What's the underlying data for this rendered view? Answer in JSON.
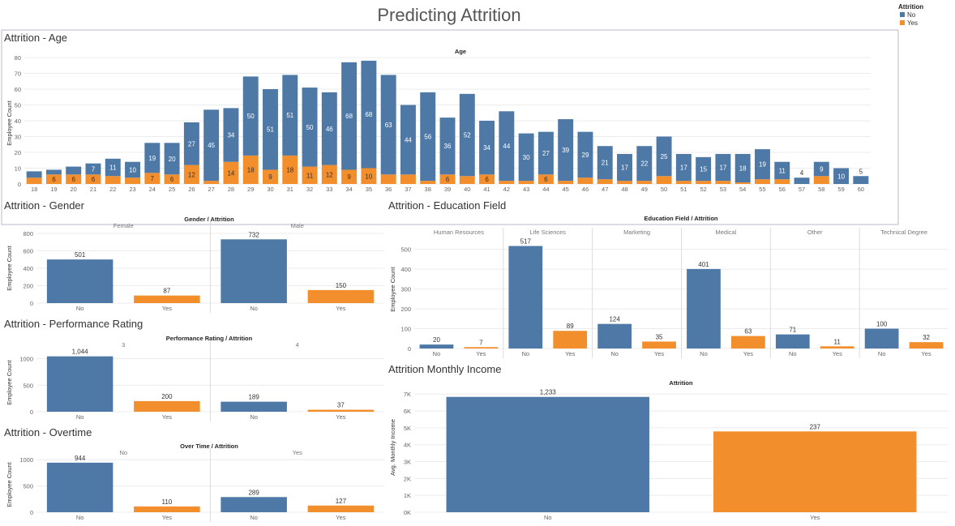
{
  "dashboard": {
    "title": "Predicting Attrition"
  },
  "legend": {
    "title": "Attrition",
    "items": [
      {
        "label": "No",
        "color": "#4e79a7"
      },
      {
        "label": "Yes",
        "color": "#f28e2b"
      }
    ]
  },
  "colors": {
    "no": "#4e79a7",
    "yes": "#f28e2b"
  },
  "chart_data": [
    {
      "id": "age",
      "type": "bar",
      "stacked": true,
      "title": "Attrition - Age",
      "header": "Age",
      "ylabel": "Employee Count",
      "ylim": [
        0,
        80
      ],
      "yticks": [
        0,
        10,
        20,
        30,
        40,
        50,
        60,
        70,
        80
      ],
      "categories": [
        "18",
        "19",
        "20",
        "21",
        "22",
        "23",
        "24",
        "25",
        "26",
        "27",
        "28",
        "29",
        "30",
        "31",
        "32",
        "33",
        "34",
        "35",
        "36",
        "37",
        "38",
        "39",
        "40",
        "41",
        "42",
        "43",
        "44",
        "45",
        "46",
        "47",
        "48",
        "49",
        "50",
        "51",
        "52",
        "53",
        "54",
        "55",
        "56",
        "57",
        "58",
        "59",
        "60"
      ],
      "series": [
        {
          "name": "Yes",
          "values": [
            4,
            6,
            6,
            6,
            5,
            4,
            7,
            6,
            12,
            2,
            14,
            18,
            9,
            18,
            11,
            12,
            9,
            10,
            6,
            6,
            2,
            6,
            5,
            6,
            2,
            2,
            6,
            2,
            4,
            3,
            2,
            2,
            5,
            2,
            2,
            2,
            1,
            3,
            3,
            0,
            5,
            0,
            0
          ],
          "labels": [
            "",
            "6",
            "6",
            "6",
            "",
            "",
            "7",
            "6",
            "12",
            "",
            "14",
            "18",
            "9",
            "18",
            "11",
            "12",
            "9",
            "10",
            "",
            "",
            "",
            "6",
            "",
            "6",
            "",
            "",
            "6",
            "",
            "",
            "",
            "",
            "",
            "",
            "",
            "",
            "",
            "",
            "",
            "",
            "",
            "",
            "",
            ""
          ]
        },
        {
          "name": "No",
          "values": [
            4,
            3,
            5,
            7,
            11,
            10,
            19,
            20,
            27,
            45,
            34,
            50,
            51,
            51,
            50,
            46,
            68,
            68,
            63,
            44,
            56,
            36,
            52,
            34,
            44,
            30,
            27,
            39,
            29,
            21,
            17,
            22,
            25,
            17,
            15,
            17,
            18,
            19,
            11,
            4,
            9,
            10,
            5
          ],
          "labels": [
            "",
            "",
            "",
            "7",
            "11",
            "10",
            "19",
            "20",
            "27",
            "45",
            "34",
            "50",
            "51",
            "51",
            "50",
            "46",
            "68",
            "68",
            "63",
            "44",
            "56",
            "36",
            "52",
            "34",
            "44",
            "30",
            "27",
            "39",
            "29",
            "21",
            "17",
            "22",
            "25",
            "17",
            "15",
            "17",
            "18",
            "19",
            "11",
            "4",
            "9",
            "10",
            "5"
          ]
        }
      ]
    },
    {
      "id": "gender",
      "type": "bar",
      "title": "Attrition - Gender",
      "header": "Gender / Attrition",
      "ylabel": "Employee Count",
      "ylim": [
        0,
        800
      ],
      "yticks": [
        0,
        200,
        400,
        600,
        800
      ],
      "tick_labels": [
        "0",
        "200",
        "400",
        "600",
        "800"
      ],
      "facets": [
        {
          "name": "Female",
          "categories": [
            "No",
            "Yes"
          ],
          "values": [
            501,
            87
          ],
          "labels": [
            "501",
            "87"
          ]
        },
        {
          "name": "Male",
          "categories": [
            "No",
            "Yes"
          ],
          "values": [
            732,
            150
          ],
          "labels": [
            "732",
            "150"
          ]
        }
      ]
    },
    {
      "id": "performance",
      "type": "bar",
      "title": "Attrition - Performance Rating",
      "header": "Performance Rating / Attrition",
      "ylabel": "Employee Count",
      "ylim": [
        0,
        1100
      ],
      "yticks": [
        0,
        500,
        1000
      ],
      "tick_labels": [
        "0",
        "500",
        "1000"
      ],
      "facets": [
        {
          "name": "3",
          "categories": [
            "No",
            "Yes"
          ],
          "values": [
            1044,
            200
          ],
          "labels": [
            "1,044",
            "200"
          ]
        },
        {
          "name": "4",
          "categories": [
            "No",
            "Yes"
          ],
          "values": [
            189,
            37
          ],
          "labels": [
            "189",
            "37"
          ]
        }
      ]
    },
    {
      "id": "overtime",
      "type": "bar",
      "title": "Attrition - Overtime",
      "header": "Over Time / Attrition",
      "ylabel": "Employee Count",
      "ylim": [
        0,
        1050
      ],
      "yticks": [
        0,
        500,
        1000
      ],
      "tick_labels": [
        "0",
        "500",
        "1000"
      ],
      "facets": [
        {
          "name": "No",
          "categories": [
            "No",
            "Yes"
          ],
          "values": [
            944,
            110
          ],
          "labels": [
            "944",
            "110"
          ]
        },
        {
          "name": "Yes",
          "categories": [
            "No",
            "Yes"
          ],
          "values": [
            289,
            127
          ],
          "labels": [
            "289",
            "127"
          ]
        }
      ]
    },
    {
      "id": "education",
      "type": "bar",
      "title": "Attrition - Education Field",
      "header": "Education Field / Attrition",
      "ylabel": "Employee Count",
      "ylim": [
        0,
        560
      ],
      "yticks": [
        0,
        100,
        200,
        300,
        400,
        500
      ],
      "tick_labels": [
        "0",
        "100",
        "200",
        "300",
        "400",
        "500"
      ],
      "facets": [
        {
          "name": "Human Resources",
          "categories": [
            "No",
            "Yes"
          ],
          "values": [
            20,
            7
          ],
          "labels": [
            "20",
            "7"
          ]
        },
        {
          "name": "Life Sciences",
          "categories": [
            "No",
            "Yes"
          ],
          "values": [
            517,
            89
          ],
          "labels": [
            "517",
            "89"
          ]
        },
        {
          "name": "Marketing",
          "categories": [
            "No",
            "Yes"
          ],
          "values": [
            124,
            35
          ],
          "labels": [
            "124",
            "35"
          ]
        },
        {
          "name": "Medical",
          "categories": [
            "No",
            "Yes"
          ],
          "values": [
            401,
            63
          ],
          "labels": [
            "401",
            "63"
          ]
        },
        {
          "name": "Other",
          "categories": [
            "No",
            "Yes"
          ],
          "values": [
            71,
            11
          ],
          "labels": [
            "71",
            "11"
          ]
        },
        {
          "name": "Technical Degree",
          "categories": [
            "No",
            "Yes"
          ],
          "values": [
            100,
            32
          ],
          "labels": [
            "100",
            "32"
          ]
        }
      ]
    },
    {
      "id": "income",
      "type": "bar",
      "title": "Attrition Monthly Income",
      "header": "Attrition",
      "ylabel": "Avg. Monthly Income",
      "ylim": [
        0,
        7300
      ],
      "yticks": [
        0,
        1000,
        2000,
        3000,
        4000,
        5000,
        6000,
        7000
      ],
      "tick_labels": [
        "0K",
        "1K",
        "2K",
        "3K",
        "4K",
        "5K",
        "6K",
        "7K"
      ],
      "facets": [
        {
          "name": "",
          "categories": [
            "No",
            "Yes"
          ],
          "values": [
            6833,
            4787
          ],
          "labels": [
            "1,233",
            "237"
          ]
        }
      ]
    }
  ]
}
